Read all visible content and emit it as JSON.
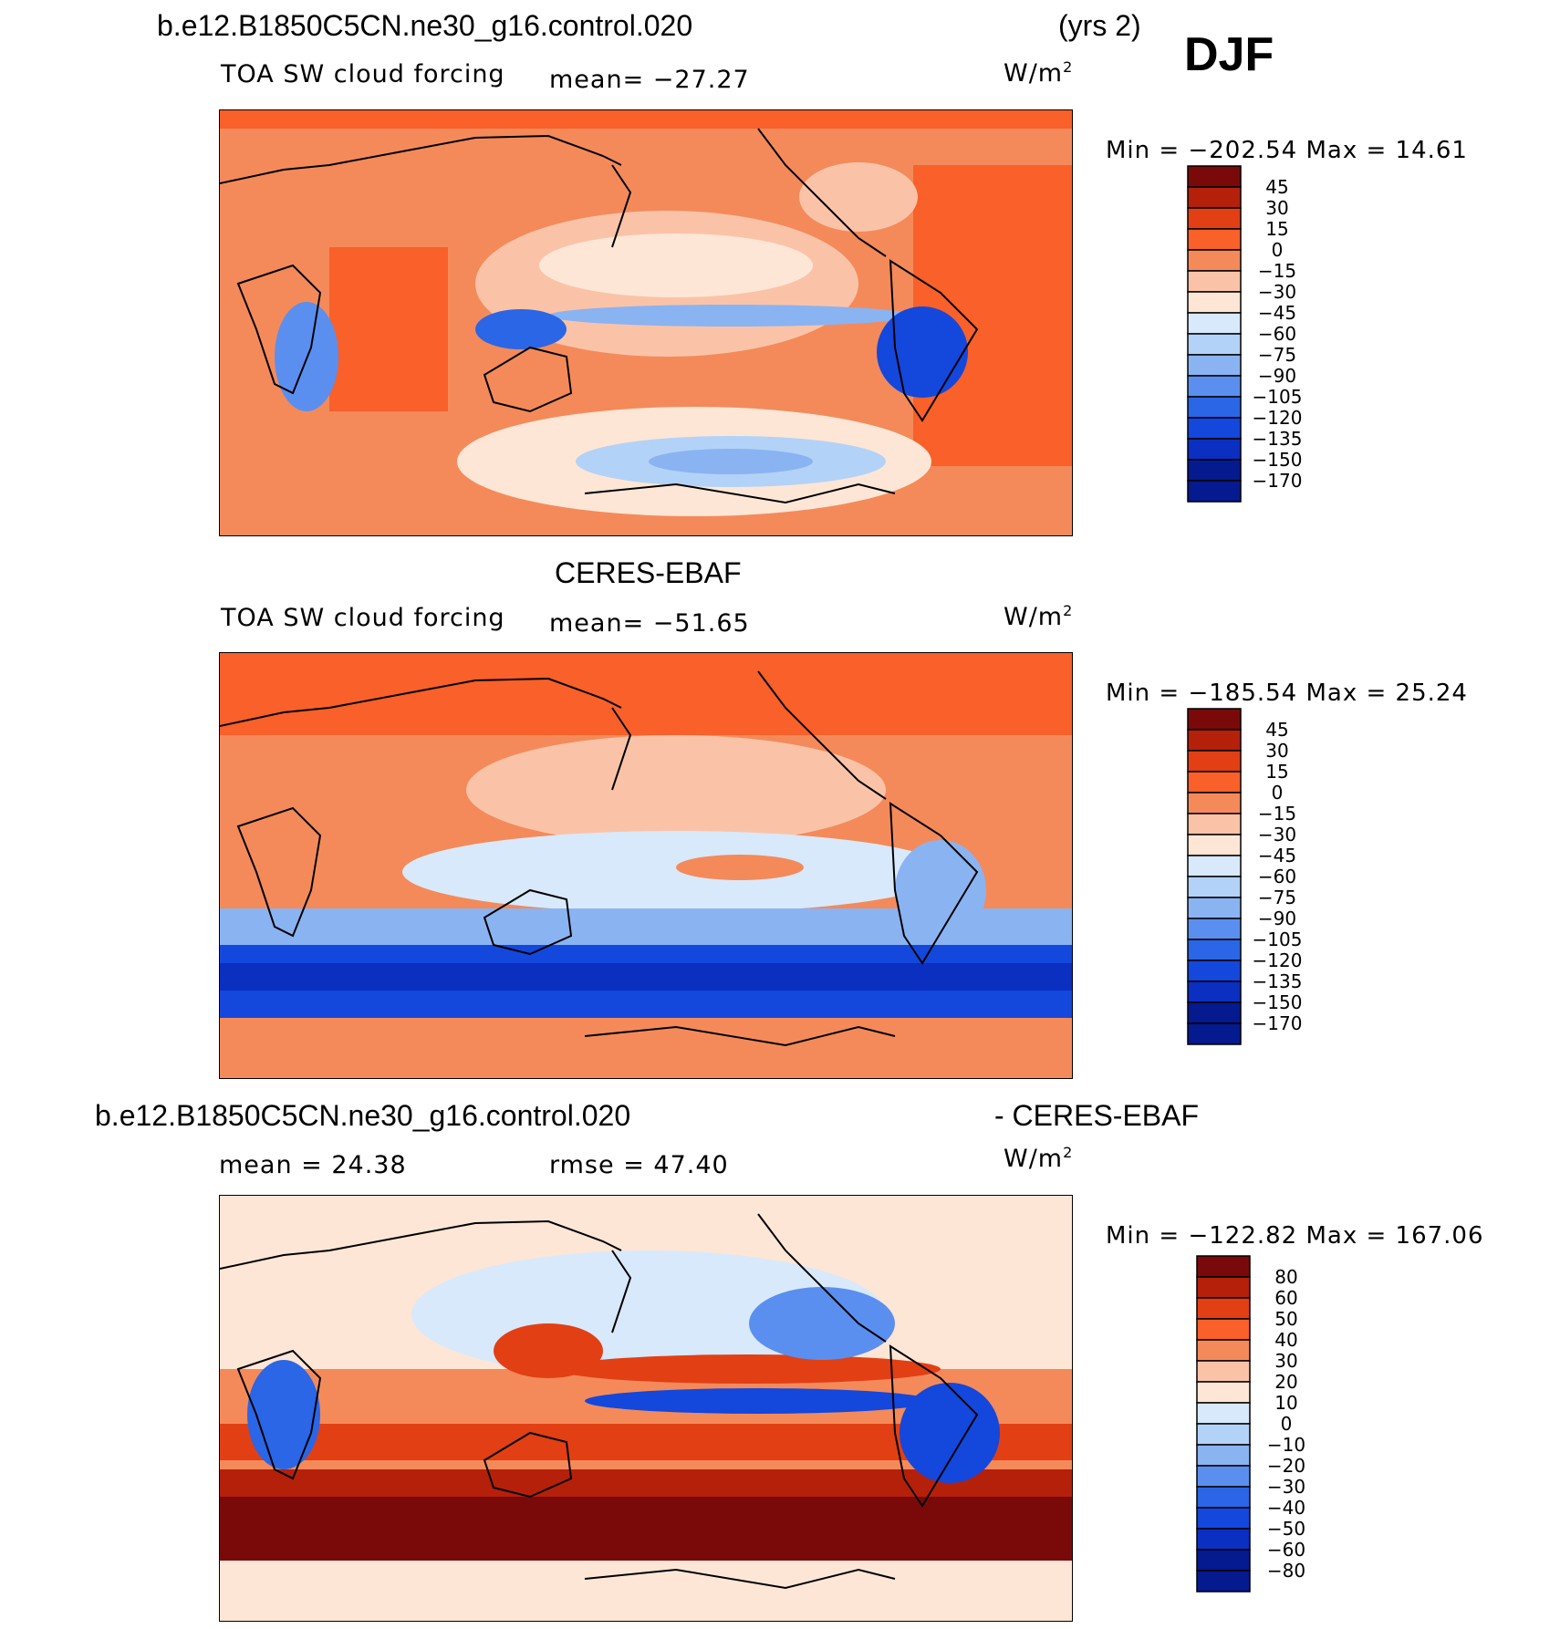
{
  "page": {
    "season": "DJF",
    "case_name": "b.e12.B1850C5CN.ne30_g16.control.020",
    "years": "(yrs 2)",
    "obs_name": "CERES-EBAF",
    "diff_suffix": "- CERES-EBAF"
  },
  "colors": {
    "pos": [
      "#7a0a0a",
      "#b5200b",
      "#e23f14",
      "#f9602a",
      "#f48a5a",
      "#fac3a8",
      "#fde6d6"
    ],
    "neg": [
      "#d8e9fb",
      "#b3d2f7",
      "#8ab3f2",
      "#5a8ff0",
      "#2a66e6",
      "#1447dc",
      "#0a2fc1",
      "#061a8f"
    ],
    "land_outline": "#000000"
  },
  "chart_data": [
    {
      "type": "heatmap",
      "panel": "model",
      "title": "b.e12.B1850C5CN.ne30_g16.control.020",
      "variable_label": "TOA SW cloud forcing",
      "mean_label": "mean= −27.27",
      "mean": -27.27,
      "units_base": "W/m",
      "units_exp": "2",
      "minmax_label": "Min = −202.54 Max =   14.61",
      "min": -202.54,
      "max": 14.61,
      "colorbar_labels": [
        "45",
        "30",
        "15",
        "0",
        "−15",
        "−30",
        "−45",
        "−60",
        "−75",
        "−90",
        "−105",
        "−120",
        "−135",
        "−150",
        "−170"
      ],
      "colorbar_levels": [
        45,
        30,
        15,
        0,
        -15,
        -30,
        -45,
        -60,
        -75,
        -90,
        -105,
        -120,
        -135,
        -150,
        -170
      ]
    },
    {
      "type": "heatmap",
      "panel": "obs",
      "title": "CERES-EBAF",
      "variable_label": "TOA SW cloud forcing",
      "mean_label": "mean= −51.65",
      "mean": -51.65,
      "units_base": "W/m",
      "units_exp": "2",
      "minmax_label": "Min = −185.54 Max =   25.24",
      "min": -185.54,
      "max": 25.24,
      "colorbar_labels": [
        "45",
        "30",
        "15",
        "0",
        "−15",
        "−30",
        "−45",
        "−60",
        "−75",
        "−90",
        "−105",
        "−120",
        "−135",
        "−150",
        "−170"
      ],
      "colorbar_levels": [
        45,
        30,
        15,
        0,
        -15,
        -30,
        -45,
        -60,
        -75,
        -90,
        -105,
        -120,
        -135,
        -150,
        -170
      ]
    },
    {
      "type": "heatmap",
      "panel": "difference",
      "title": "b.e12.B1850C5CN.ne30_g16.control.020 - CERES-EBAF",
      "mean_label": "mean =   24.38",
      "mean": 24.38,
      "rmse_label": "rmse =   47.40",
      "rmse": 47.4,
      "units_base": "W/m",
      "units_exp": "2",
      "minmax_label": "Min = −122.82 Max = 167.06",
      "min": -122.82,
      "max": 167.06,
      "colorbar_labels": [
        "80",
        "60",
        "50",
        "40",
        "30",
        "20",
        "10",
        "0",
        "−10",
        "−20",
        "−30",
        "−40",
        "−50",
        "−60",
        "−80"
      ],
      "colorbar_levels": [
        80,
        60,
        50,
        40,
        30,
        20,
        10,
        0,
        -10,
        -20,
        -30,
        -40,
        -50,
        -60,
        -80
      ]
    }
  ]
}
